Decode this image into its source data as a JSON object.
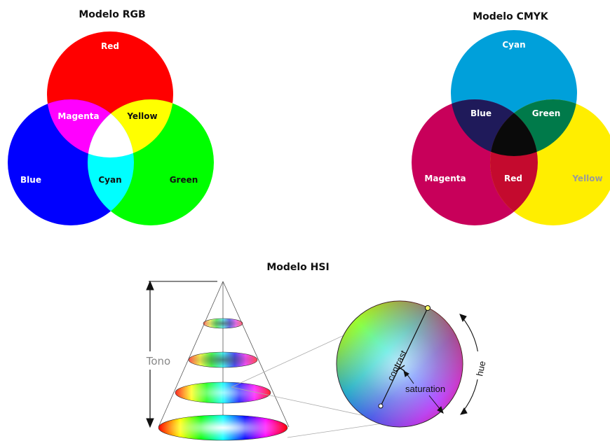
{
  "rgb": {
    "title": "Modelo RGB",
    "labels": {
      "red": "Red",
      "magenta": "Magenta",
      "yellow": "Yellow",
      "blue": "Blue",
      "cyan": "Cyan",
      "green": "Green"
    },
    "colors": {
      "red": "#ff0000",
      "green": "#00ff00",
      "blue": "#0000ff",
      "yellow": "#ffff00",
      "magenta": "#ff00ff",
      "cyan": "#00ffff",
      "white": "#ffffff"
    }
  },
  "cmyk": {
    "title": "Modelo CMYK",
    "labels": {
      "cyan": "Cyan",
      "blue": "Blue",
      "green": "Green",
      "magenta": "Magenta",
      "red": "Red",
      "yellow": "Yellow"
    },
    "colors": {
      "cyan": "#00a0da",
      "magenta": "#c8005a",
      "yellow": "#ffee00",
      "blue": "#1f1a5a",
      "green": "#007a4a",
      "red": "#c40a2e",
      "black": "#0a0a0a"
    }
  },
  "hsi": {
    "title": "Modelo HSI",
    "tono_label": "Tono",
    "contrast_label": "contrast",
    "saturation_label": "saturation",
    "hue_label": "hue"
  }
}
